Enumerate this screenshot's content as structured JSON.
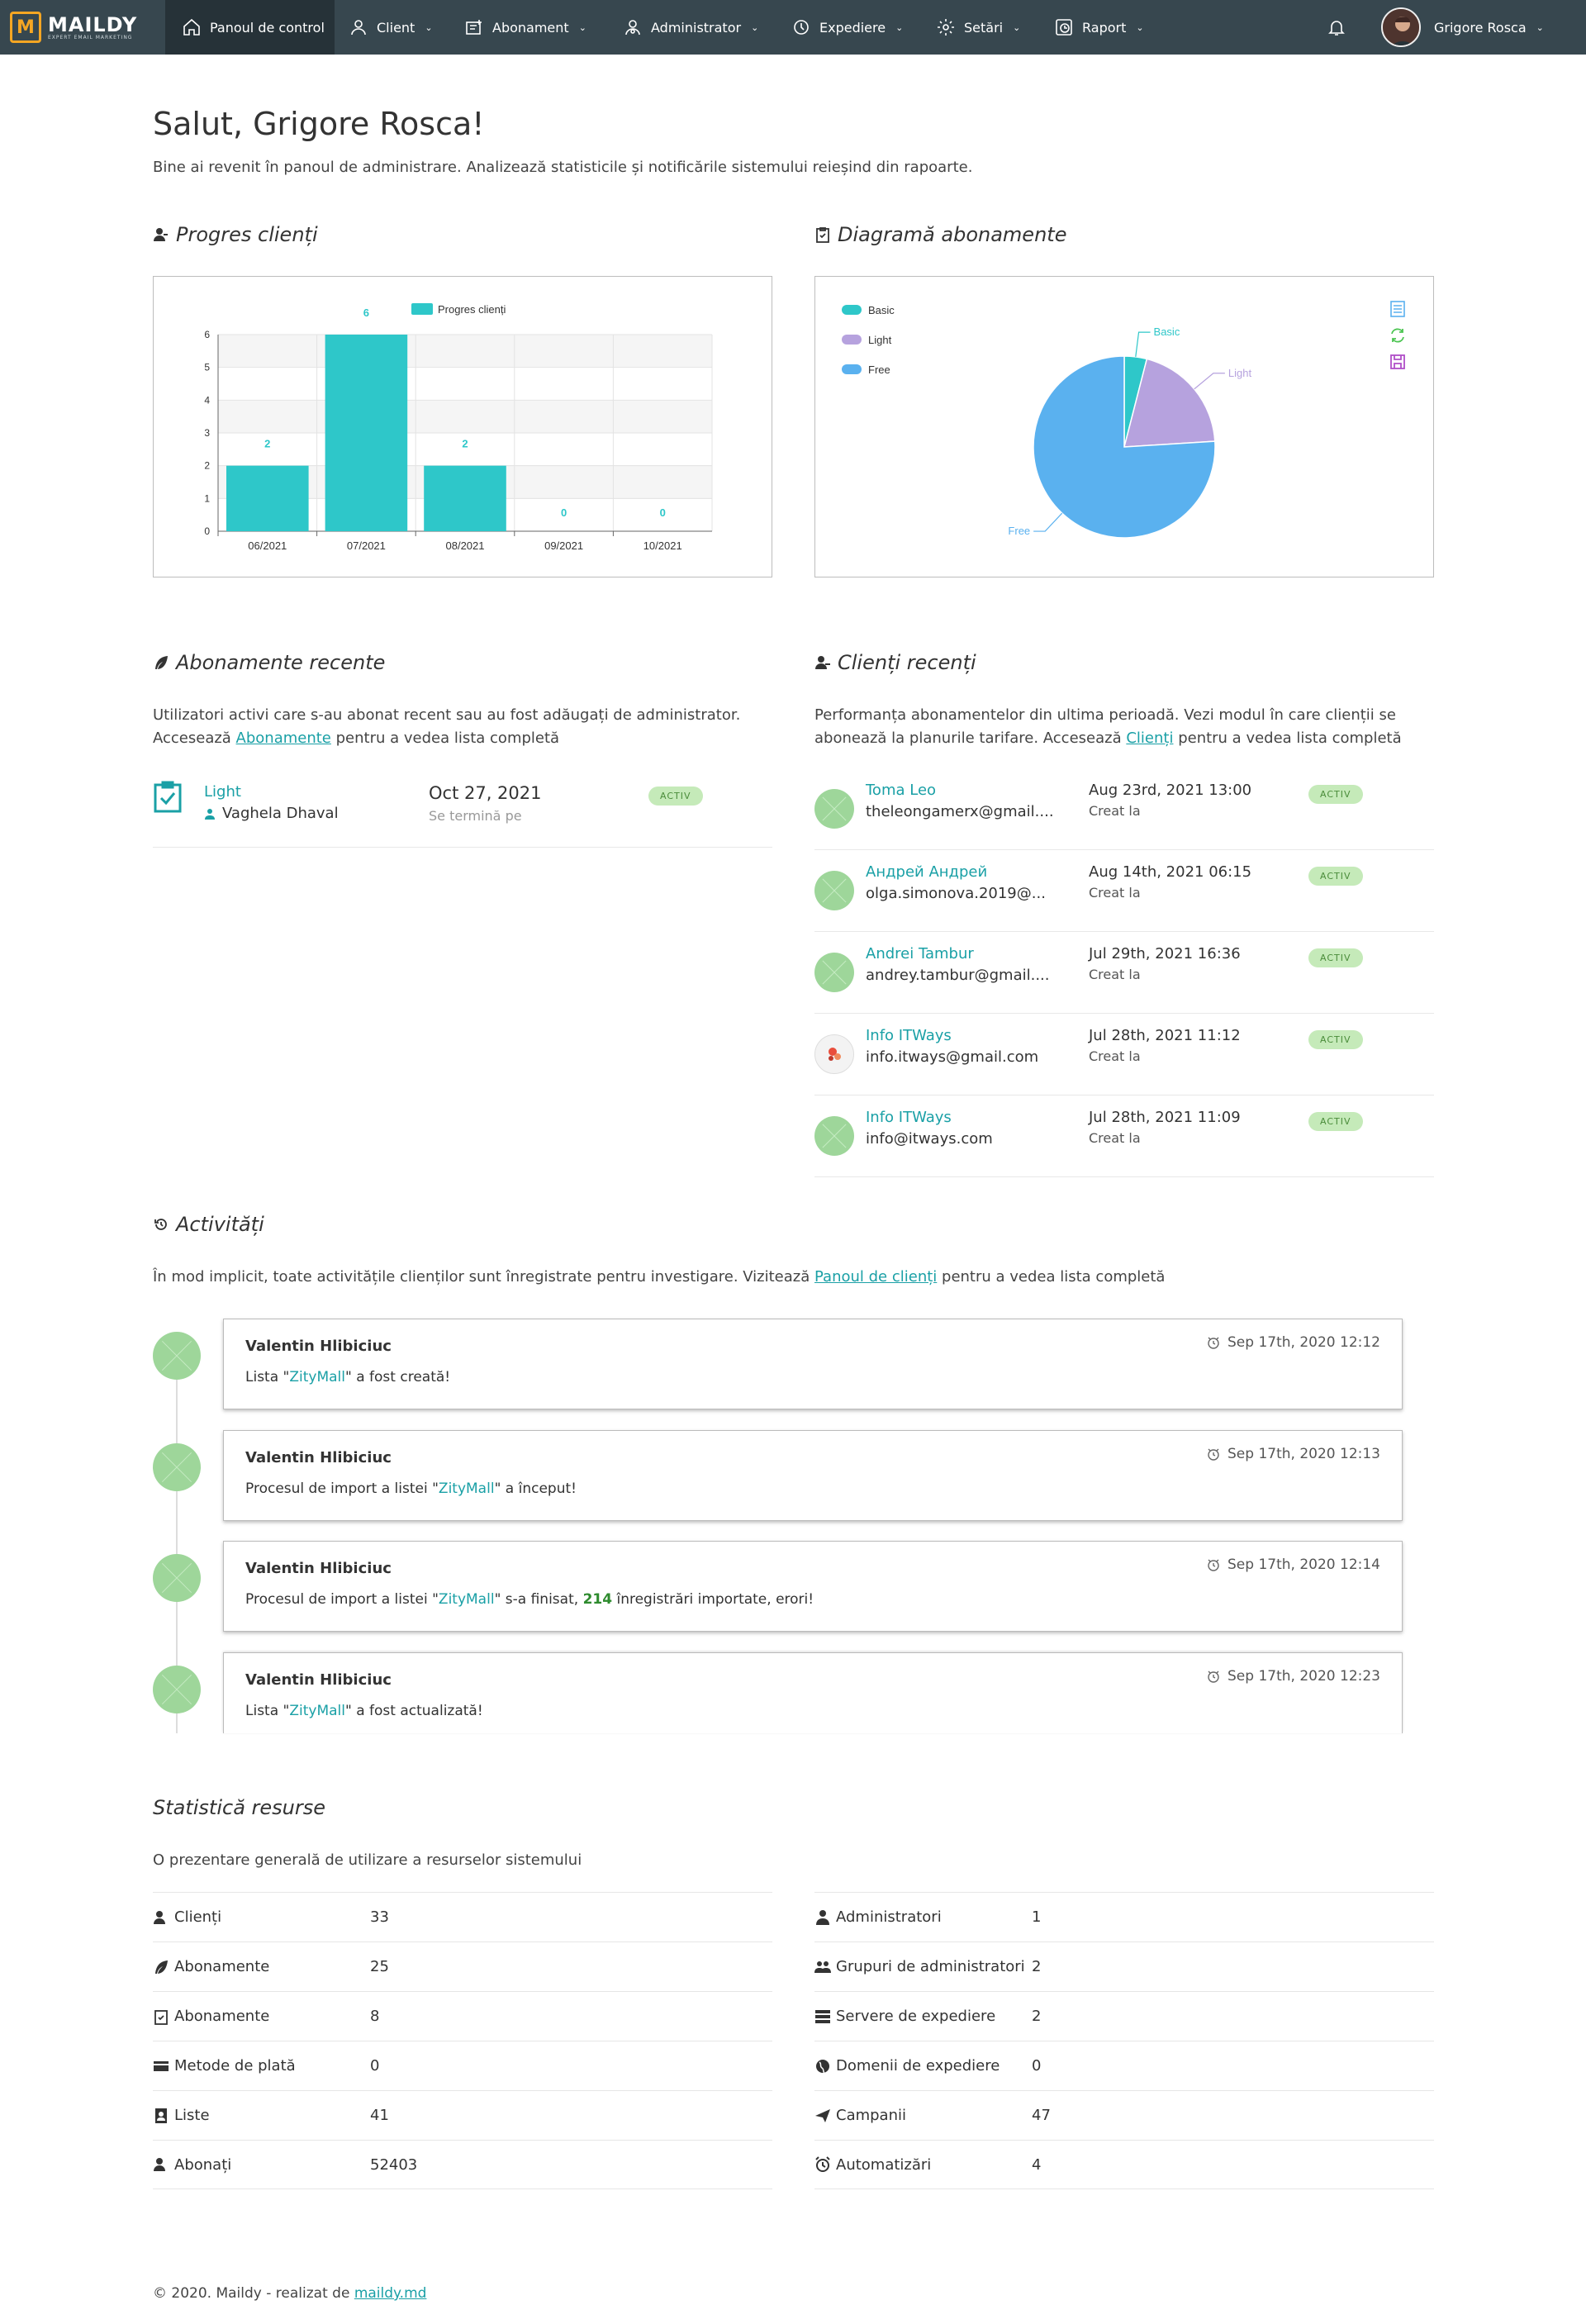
{
  "brand": {
    "name": "MAILDY",
    "tagline": "EXPERT EMAIL MARKETING"
  },
  "nav": {
    "dashboard": "Panoul de control",
    "client": "Client",
    "subscription": "Abonament",
    "administrator": "Administrator",
    "sending": "Expediere",
    "settings": "Setări",
    "report": "Raport",
    "user": "Grigore Rosca"
  },
  "header": {
    "greeting": "Salut, Grigore Rosca!",
    "subtitle": "Bine ai revenit în panoul de administrare. Analizează statisticile și notificările sistemului reieșind din rapoarte."
  },
  "sections": {
    "client_progress": "Progres clienți",
    "sub_chart": "Diagramă abonamente",
    "recent_subs": "Abonamente recente",
    "recent_clients": "Clienți recenți",
    "activities": "Activități",
    "resources": "Statistică resurse"
  },
  "recent_subs": {
    "desc_1": "Utilizatori activi care s-au abonat recent sau au fost adăugați de administrator.",
    "desc_2_pre": "Accesează ",
    "desc_2_link": "Abonamente",
    "desc_2_post": " pentru a vedea lista completă",
    "item": {
      "plan": "Light",
      "user": "Vaghela Dhaval",
      "date": "Oct 27, 2021",
      "date_label": "Se termină pe",
      "status": "ACTIV"
    }
  },
  "recent_clients": {
    "desc_1": "Performanța abonamentelor din ultima perioadă. Vezi modul în care clienții se",
    "desc_2_pre": "abonează la planurile tarifare. Accesează ",
    "desc_2_link": "Clienți",
    "desc_2_post": " pentru a vedea lista completă",
    "created_label": "Creat la",
    "items": [
      {
        "name": "Toma Leo",
        "email": "theleongamerx@gmail....",
        "date": "Aug 23rd, 2021 13:00",
        "status": "ACTIV"
      },
      {
        "name": "Андрей Андрей",
        "email": "olga.simonova.2019@...",
        "date": "Aug 14th, 2021 06:15",
        "status": "ACTIV"
      },
      {
        "name": "Andrei Tambur",
        "email": "andrey.tambur@gmail....",
        "date": "Jul 29th, 2021 16:36",
        "status": "ACTIV"
      },
      {
        "name": "Info ITWays",
        "email": "info.itways@gmail.com",
        "date": "Jul 28th, 2021 11:12",
        "status": "ACTIV"
      },
      {
        "name": "Info ITWays",
        "email": "info@itways.com",
        "date": "Jul 28th, 2021 11:09",
        "status": "ACTIV"
      }
    ]
  },
  "activities": {
    "desc_pre": "În mod implicit, toate activitățile clienților sunt înregistrate pentru investigare. Vizitează ",
    "desc_link": "Panoul de clienți",
    "desc_post": " pentru a vedea lista completă",
    "items": [
      {
        "name": "Valentin Hlibiciuc",
        "date": "Sep 17th, 2020 12:12",
        "t1": "Lista \"",
        "hl": "ZityMall",
        "t2": "\" a fost creată!",
        "num": "",
        "t3": ""
      },
      {
        "name": "Valentin Hlibiciuc",
        "date": "Sep 17th, 2020 12:13",
        "t1": "Procesul de import a listei \"",
        "hl": "ZityMall",
        "t2": "\" a început!",
        "num": "",
        "t3": ""
      },
      {
        "name": "Valentin Hlibiciuc",
        "date": "Sep 17th, 2020 12:14",
        "t1": "Procesul de import a listei \"",
        "hl": "ZityMall",
        "t2": "\" s-a finisat, ",
        "num": "214",
        "t3": " înregistrări importate, erori!"
      },
      {
        "name": "Valentin Hlibiciuc",
        "date": "Sep 17th, 2020 12:23",
        "t1": "Lista \"",
        "hl": "ZityMall",
        "t2": "\" a fost actualizată!",
        "num": "",
        "t3": ""
      }
    ]
  },
  "resources": {
    "desc": "O prezentare generală de utilizare a resurselor sistemului",
    "left": [
      {
        "label": "Clienți",
        "value": "33",
        "icon": "users-icon"
      },
      {
        "label": "Abonamente",
        "value": "25",
        "icon": "feather-icon"
      },
      {
        "label": "Abonamente",
        "value": "8",
        "icon": "clipboard-icon"
      },
      {
        "label": "Metode de plată",
        "value": "0",
        "icon": "credit-card-icon"
      },
      {
        "label": "Liste",
        "value": "41",
        "icon": "contacts-icon"
      },
      {
        "label": "Abonați",
        "value": "52403",
        "icon": "users-icon"
      }
    ],
    "right": [
      {
        "label": "Administratori",
        "value": "1",
        "icon": "admin-icon"
      },
      {
        "label": "Grupuri de administratori",
        "value": "2",
        "icon": "group-icon"
      },
      {
        "label": "Servere de expediere",
        "value": "2",
        "icon": "server-icon"
      },
      {
        "label": "Domenii de expediere",
        "value": "0",
        "icon": "globe-icon"
      },
      {
        "label": "Campanii",
        "value": "47",
        "icon": "send-icon"
      },
      {
        "label": "Automatizări",
        "value": "4",
        "icon": "alarm-icon"
      }
    ]
  },
  "footer": {
    "text": "© 2020. Maildy - realizat de ",
    "link": "maildy.md"
  },
  "chart_data": [
    {
      "type": "bar",
      "categories": [
        "06/2021",
        "07/2021",
        "08/2021",
        "09/2021",
        "10/2021"
      ],
      "series": [
        {
          "name": "Progres clienți",
          "values": [
            2,
            6,
            2,
            0,
            0
          ]
        }
      ],
      "ylim": [
        0,
        6
      ],
      "yticks": [
        "0",
        "1",
        "2",
        "3",
        "4",
        "5",
        "6"
      ],
      "color": "#2ec7c9"
    },
    {
      "type": "pie",
      "labels": [
        "Basic",
        "Light",
        "Free"
      ],
      "values": [
        4,
        20,
        76
      ],
      "colors": [
        "#2ec7c9",
        "#b6a2de",
        "#5ab1ef"
      ],
      "legend": "top-left"
    }
  ]
}
